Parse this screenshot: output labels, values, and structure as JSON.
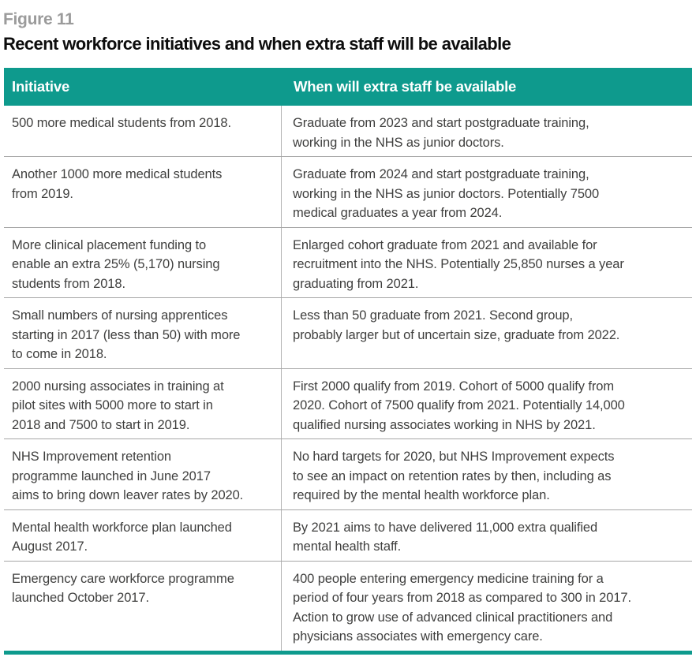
{
  "figure": {
    "label": "Figure 11",
    "title": "Recent workforce initiatives and when extra staff will be available"
  },
  "colors": {
    "header_teal": "#0e9a8d",
    "figure_label_gray": "#9b9b9b",
    "body_text": "#3f3f3e",
    "row_divider_gray": "#a6a6a6",
    "column_divider_gray": "#b4b4b4"
  },
  "table": {
    "headers": {
      "initiative": "Initiative",
      "availability": "When will extra staff be available"
    },
    "rows": [
      {
        "initiative": "500 more medical students from 2018.",
        "availability": "Graduate from 2023 and start postgraduate training,\nworking in the NHS as junior doctors."
      },
      {
        "initiative": "Another 1000 more medical students\nfrom 2019.",
        "availability": "Graduate from 2024 and start postgraduate training,\nworking in the NHS as junior doctors. Potentially 7500\nmedical graduates a year from 2024."
      },
      {
        "initiative": "More clinical placement funding to\nenable an extra 25% (5,170) nursing\nstudents from 2018.",
        "availability": "Enlarged cohort graduate from 2021 and available for\nrecruitment into the NHS. Potentially 25,850 nurses a year\ngraduating from 2021."
      },
      {
        "initiative": "Small numbers of nursing apprentices\nstarting in 2017 (less than 50) with more\nto come in 2018.",
        "availability": "Less than 50 graduate from 2021. Second group,\nprobably larger but of uncertain size, graduate from 2022."
      },
      {
        "initiative": "2000 nursing associates in training at\npilot sites with 5000 more to start in\n2018 and 7500 to start in 2019.",
        "availability": "First 2000 qualify from 2019. Cohort of 5000 qualify from\n2020. Cohort of 7500 qualify from 2021. Potentially 14,000\nqualified nursing associates working in NHS by 2021."
      },
      {
        "initiative": "NHS Improvement retention\nprogramme launched in June 2017\naims to bring down leaver rates by 2020.",
        "availability": "No hard targets for 2020, but NHS Improvement expects\nto see an impact on retention rates by then, including as\nrequired by the mental health workforce plan."
      },
      {
        "initiative": "Mental health workforce plan launched\nAugust 2017.",
        "availability": "By 2021 aims to have delivered 11,000 extra qualified\nmental health staff."
      },
      {
        "initiative": "Emergency care workforce programme\nlaunched October 2017.",
        "availability": "400 people entering emergency medicine training for a\nperiod of four years from 2018 as compared to 300 in 2017.\nAction to grow use of advanced clinical practitioners and\nphysicians associates with emergency care."
      }
    ]
  }
}
